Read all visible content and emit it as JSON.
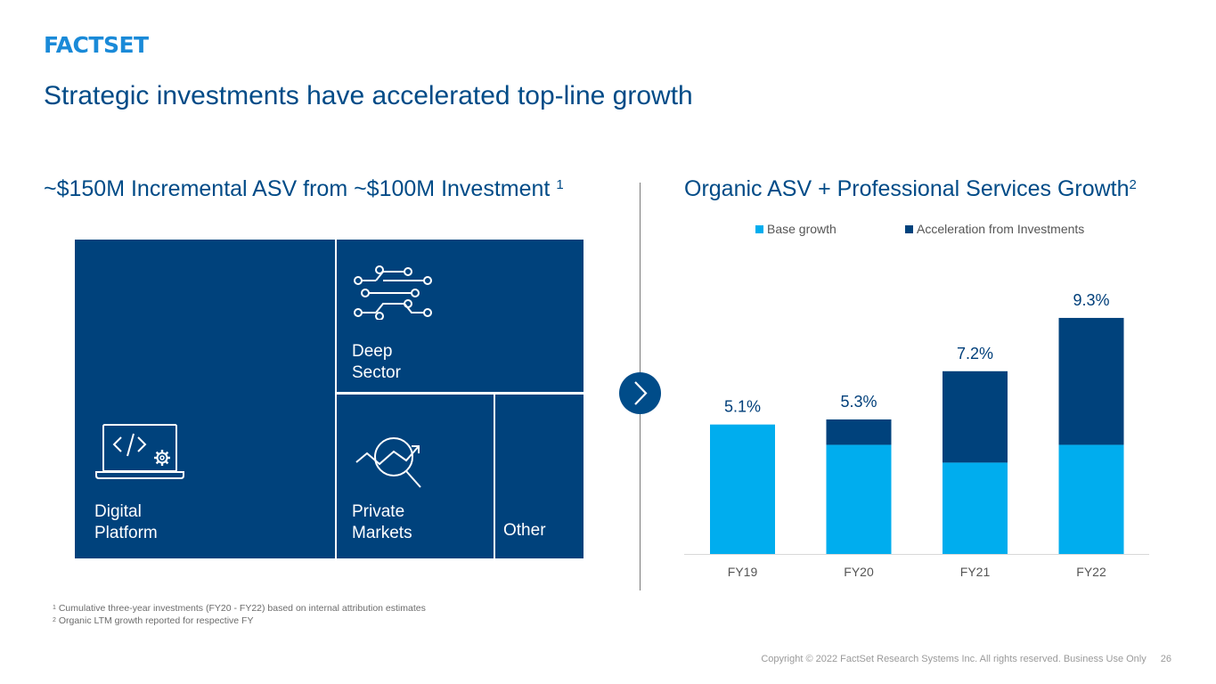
{
  "logo": {
    "text": "FACTSET"
  },
  "slide_title": "Strategic investments have accelerated top-line growth",
  "left_section": {
    "heading": "~$150M Incremental ASV from ~$100M Investment",
    "heading_sup": "1",
    "tiles": {
      "digital": {
        "label": "Digital\nPlatform",
        "icon": "laptop-code-gear-icon"
      },
      "deep": {
        "label": "Deep\nSector",
        "icon": "circuit-nodes-icon"
      },
      "private": {
        "label": "Private\nMarkets",
        "icon": "magnifier-trend-icon"
      },
      "other": {
        "label": "Other"
      }
    }
  },
  "right_section": {
    "heading": "Organic ASV + Professional Services Growth",
    "heading_sup": "2"
  },
  "colors": {
    "base": "#00adee",
    "acceleration": "#00427c",
    "title": "#004b87",
    "logo": "#1a8ad8"
  },
  "chart_data": {
    "type": "bar",
    "stacked": true,
    "categories": [
      "FY19",
      "FY20",
      "FY21",
      "FY22"
    ],
    "series": [
      {
        "name": "Base growth",
        "values": [
          5.1,
          4.3,
          3.6,
          4.3
        ]
      },
      {
        "name": "Acceleration from Investments",
        "values": [
          0.0,
          1.0,
          3.6,
          5.0
        ]
      }
    ],
    "totals": [
      5.1,
      5.3,
      7.2,
      9.3
    ],
    "data_labels": [
      "5.1%",
      "5.3%",
      "7.2%",
      "9.3%"
    ],
    "ylim": [
      0,
      10
    ],
    "grid": false,
    "legend": "top"
  },
  "footnotes": [
    {
      "num": "1",
      "text": "Cumulative three-year investments (FY20 - FY22) based on internal attribution estimates"
    },
    {
      "num": "2",
      "text": "Organic LTM growth reported for respective FY"
    }
  ],
  "footer": {
    "copyright": "Copyright © 2022 FactSet Research Systems Inc. All rights reserved. Business Use Only",
    "page_number": "26"
  }
}
